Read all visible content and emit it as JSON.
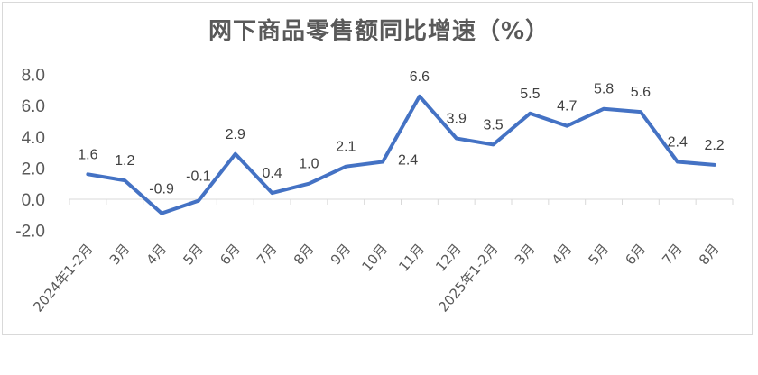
{
  "chart_data": {
    "type": "line",
    "title": "网下商品零售额同比增速（%）",
    "categories": [
      "2024年1-2月",
      "3月",
      "4月",
      "5月",
      "6月",
      "7月",
      "8月",
      "9月",
      "10月",
      "11月",
      "12月",
      "2025年1-2月",
      "3月",
      "4月",
      "5月",
      "6月",
      "7月",
      "8月"
    ],
    "values": [
      1.6,
      1.2,
      -0.9,
      -0.1,
      2.9,
      0.4,
      1.0,
      2.1,
      2.4,
      6.6,
      3.9,
      3.5,
      5.5,
      4.7,
      5.8,
      5.6,
      2.4,
      2.2
    ],
    "data_labels": [
      "1.6",
      "1.2",
      "-0.9",
      "-0.1",
      "2.9",
      "0.4",
      "1.0",
      "2.1",
      "2.4",
      "6.6",
      "3.9",
      "3.5",
      "5.5",
      "4.7",
      "5.8",
      "5.6",
      "2.4",
      "2.2"
    ],
    "yticks": [
      "-2.0",
      "0.0",
      "2.0",
      "4.0",
      "6.0",
      "8.0"
    ],
    "ylim": [
      -2,
      8
    ],
    "color": "#4472c4",
    "grid": false
  }
}
